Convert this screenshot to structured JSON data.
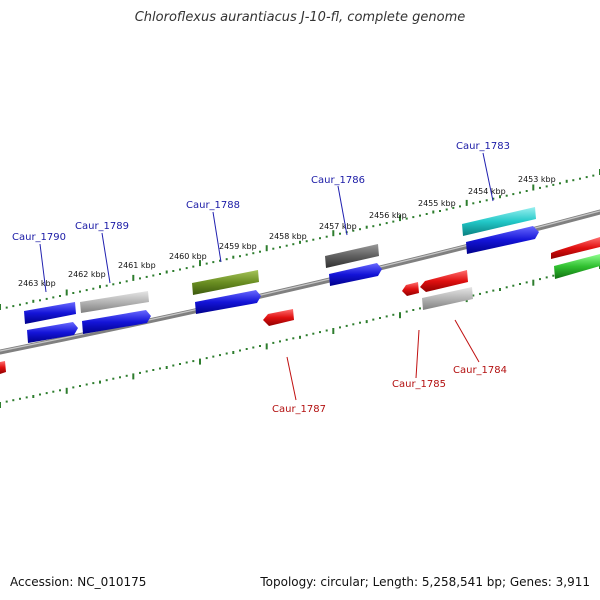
{
  "title": "Chloroflexus aurantiacus J-10-fl, complete genome",
  "footer": {
    "accession": "Accession: NC_010175",
    "stats": "Topology: circular; Length: 5,258,541 bp; Genes: 3,911"
  },
  "colors": {
    "backbone": "#8c8c8c",
    "tick": "#2e7d2e",
    "forward_label": "#1a1aa6",
    "reverse_label": "#b31010",
    "blue": "#1414d8",
    "red": "#e01010",
    "gray": "#b4b4b4",
    "darkgray": "#606060",
    "olive": "#6a8e22",
    "cyan": "#22c8c8",
    "green": "#30c030"
  },
  "kbp_labels": [
    "2463 kbp",
    "2462 kbp",
    "2461 kbp",
    "2460 kbp",
    "2459 kbp",
    "2458 kbp",
    "2457 kbp",
    "2456 kbp",
    "2455 kbp",
    "2454 kbp",
    "2453 kbp"
  ],
  "gene_labels_top": [
    "Caur_1790",
    "Caur_1789",
    "Caur_1788",
    "Caur_1786",
    "Caur_1783"
  ],
  "gene_labels_bottom": [
    "Caur_1787",
    "Caur_1785",
    "Caur_1784"
  ]
}
